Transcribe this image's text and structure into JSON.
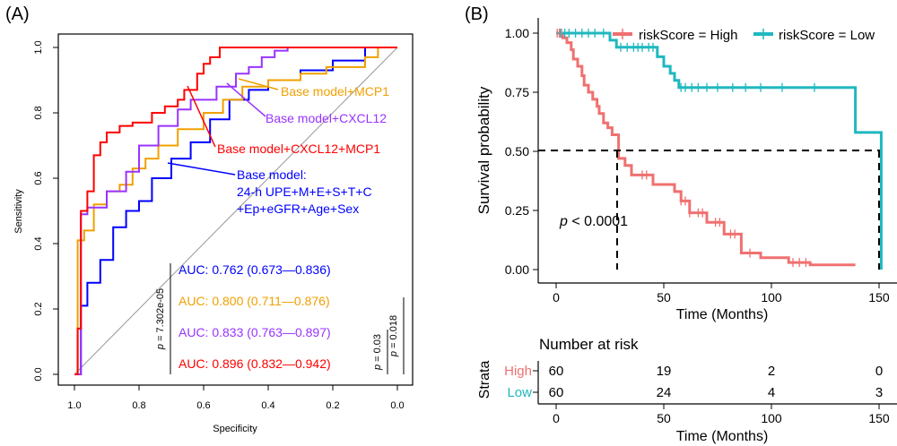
{
  "panel_a": {
    "label": "(A)",
    "ylabel": "Sensitivity",
    "xlabel": "Specificity",
    "x_ticks": [
      "1.0",
      "0.8",
      "0.6",
      "0.4",
      "0.2",
      "0.0"
    ],
    "y_ticks": [
      "0.0",
      "0.2",
      "0.4",
      "0.6",
      "0.8",
      "1.0"
    ],
    "label_mcp1": "Base model+MCP1",
    "label_cxcl12": "Base model+CXCL12",
    "label_both": "Base model+CXCL12+MCP1",
    "label_base_1": "Base model:",
    "label_base_2": "24-h UPE+M+E+S+T+C",
    "label_base_3": "+Ep+eGFR+Age+Sex",
    "auc_base": "AUC: 0.762 (0.673—0.836)",
    "auc_mcp1": "AUC: 0.800 (0.711—0.876)",
    "auc_cxcl12": "AUC: 0.833 (0.763—0.897)",
    "auc_both": "AUC: 0.896 (0.832—0.942)",
    "p_main_sym": "p",
    "p_main_val": " = 7.302e-05",
    "p_a_sym": "p",
    "p_a_val": " = 0.03",
    "p_b_sym": "p",
    "p_b_val": " = 0.018"
  },
  "panel_b": {
    "label": "(B)",
    "legend_high": "riskScore = High",
    "legend_low": "riskScore = Low",
    "ylabel": "Survival probability",
    "xlabel": "Time (Months)",
    "y_ticks": [
      "0.00",
      "0.25",
      "0.50",
      "0.75",
      "1.00"
    ],
    "x_ticks": [
      "0",
      "50",
      "100",
      "150"
    ],
    "pvalue_sym": "p",
    "pvalue_val": " < 0.0001",
    "risk_title": "Number at risk",
    "strata_label": "Strata",
    "strata_high": "High",
    "strata_low": "Low",
    "risk_high": [
      "60",
      "19",
      "2",
      "0"
    ],
    "risk_low": [
      "60",
      "24",
      "4",
      "3"
    ],
    "risk_xlabel": "Time (Months)",
    "risk_x_ticks": [
      "0",
      "50",
      "100",
      "150"
    ]
  },
  "colors": {
    "base": "#0000ff",
    "mcp1": "#f0a000",
    "cxcl12": "#9933ff",
    "both": "#ff0000",
    "high": "#f07070",
    "low": "#20b8c0"
  },
  "chart_data": [
    {
      "type": "line",
      "xlabel": "Specificity",
      "ylabel": "Sensitivity",
      "xlim": [
        1.0,
        0.0
      ],
      "ylim": [
        0.0,
        1.0
      ],
      "series": [
        {
          "name": "Base model+CXCL12+MCP1",
          "auc": 0.896,
          "x": [
            1.0,
            0.99,
            0.99,
            0.98,
            0.98,
            0.96,
            0.96,
            0.94,
            0.94,
            0.92,
            0.92,
            0.9,
            0.9,
            0.86,
            0.86,
            0.82,
            0.82,
            0.76,
            0.76,
            0.72,
            0.72,
            0.68,
            0.68,
            0.66,
            0.66,
            0.62,
            0.62,
            0.6,
            0.6,
            0.58,
            0.58,
            0.55,
            0.55,
            0.0
          ],
          "y": [
            0.0,
            0.0,
            0.14,
            0.14,
            0.5,
            0.5,
            0.56,
            0.56,
            0.67,
            0.67,
            0.71,
            0.71,
            0.74,
            0.74,
            0.76,
            0.76,
            0.77,
            0.77,
            0.8,
            0.8,
            0.82,
            0.82,
            0.84,
            0.84,
            0.87,
            0.87,
            0.92,
            0.92,
            0.95,
            0.95,
            0.97,
            0.97,
            1.0,
            1.0
          ]
        },
        {
          "name": "Base model+CXCL12",
          "auc": 0.833,
          "x": [
            1.0,
            0.98,
            0.98,
            0.96,
            0.96,
            0.9,
            0.9,
            0.84,
            0.84,
            0.8,
            0.8,
            0.74,
            0.74,
            0.68,
            0.68,
            0.64,
            0.64,
            0.56,
            0.56,
            0.5,
            0.5,
            0.46,
            0.46,
            0.42,
            0.42,
            0.38,
            0.38,
            0.34,
            0.34,
            0.0
          ],
          "y": [
            0.0,
            0.0,
            0.49,
            0.49,
            0.51,
            0.51,
            0.56,
            0.56,
            0.62,
            0.62,
            0.7,
            0.7,
            0.76,
            0.76,
            0.81,
            0.81,
            0.84,
            0.84,
            0.88,
            0.88,
            0.92,
            0.92,
            0.94,
            0.94,
            0.97,
            0.97,
            0.99,
            0.99,
            1.0,
            1.0
          ]
        },
        {
          "name": "Base model+MCP1",
          "auc": 0.8,
          "x": [
            1.0,
            0.99,
            0.99,
            0.97,
            0.97,
            0.94,
            0.94,
            0.9,
            0.9,
            0.86,
            0.86,
            0.82,
            0.82,
            0.78,
            0.78,
            0.74,
            0.74,
            0.68,
            0.68,
            0.6,
            0.6,
            0.54,
            0.54,
            0.48,
            0.48,
            0.4,
            0.4,
            0.3,
            0.3,
            0.22,
            0.22,
            0.1,
            0.1,
            0.06,
            0.06,
            0.0
          ],
          "y": [
            0.0,
            0.0,
            0.41,
            0.41,
            0.44,
            0.44,
            0.52,
            0.52,
            0.56,
            0.56,
            0.58,
            0.58,
            0.63,
            0.63,
            0.66,
            0.66,
            0.7,
            0.7,
            0.75,
            0.75,
            0.8,
            0.8,
            0.84,
            0.84,
            0.88,
            0.88,
            0.9,
            0.9,
            0.92,
            0.92,
            0.94,
            0.94,
            0.97,
            0.97,
            1.0,
            1.0
          ]
        },
        {
          "name": "Base model",
          "auc": 0.762,
          "x": [
            1.0,
            0.98,
            0.98,
            0.96,
            0.96,
            0.92,
            0.92,
            0.88,
            0.88,
            0.84,
            0.84,
            0.8,
            0.8,
            0.76,
            0.76,
            0.7,
            0.7,
            0.64,
            0.64,
            0.58,
            0.58,
            0.52,
            0.52,
            0.46,
            0.46,
            0.4,
            0.4,
            0.3,
            0.3,
            0.2,
            0.2,
            0.1,
            0.1,
            0.0
          ],
          "y": [
            0.0,
            0.0,
            0.21,
            0.21,
            0.28,
            0.28,
            0.35,
            0.35,
            0.45,
            0.45,
            0.5,
            0.5,
            0.53,
            0.53,
            0.6,
            0.6,
            0.66,
            0.66,
            0.71,
            0.71,
            0.78,
            0.78,
            0.84,
            0.84,
            0.87,
            0.87,
            0.9,
            0.9,
            0.93,
            0.93,
            0.96,
            0.96,
            1.0,
            1.0
          ]
        }
      ]
    },
    {
      "type": "line",
      "xlabel": "Time (Months)",
      "ylabel": "Survival probability",
      "xlim": [
        0,
        155
      ],
      "ylim": [
        0,
        1
      ],
      "median_survival": {
        "High": 29,
        "Low": 151
      },
      "series": [
        {
          "name": "riskScore = High",
          "x": [
            0,
            3,
            3,
            5,
            5,
            7,
            7,
            8,
            8,
            10,
            10,
            12,
            12,
            13,
            13,
            15,
            15,
            17,
            17,
            19,
            19,
            20,
            20,
            22,
            22,
            24,
            24,
            26,
            26,
            29,
            29,
            32,
            32,
            35,
            35,
            45,
            45,
            55,
            55,
            58,
            58,
            62,
            62,
            70,
            70,
            78,
            78,
            86,
            86,
            95,
            95,
            108,
            108,
            118,
            118,
            139
          ],
          "y": [
            1.0,
            1.0,
            0.98,
            0.98,
            0.96,
            0.96,
            0.93,
            0.93,
            0.89,
            0.89,
            0.86,
            0.86,
            0.82,
            0.82,
            0.78,
            0.78,
            0.75,
            0.75,
            0.72,
            0.72,
            0.69,
            0.69,
            0.66,
            0.66,
            0.62,
            0.62,
            0.6,
            0.6,
            0.57,
            0.57,
            0.47,
            0.47,
            0.44,
            0.44,
            0.4,
            0.4,
            0.36,
            0.36,
            0.33,
            0.33,
            0.29,
            0.29,
            0.24,
            0.24,
            0.2,
            0.2,
            0.15,
            0.15,
            0.07,
            0.07,
            0.05,
            0.05,
            0.03,
            0.03,
            0.02,
            0.02
          ]
        },
        {
          "name": "riskScore = Low",
          "x": [
            0,
            25,
            25,
            28,
            28,
            47,
            47,
            50,
            50,
            53,
            53,
            55,
            55,
            57,
            57,
            139,
            139,
            151,
            151
          ],
          "y": [
            1.0,
            1.0,
            0.97,
            0.97,
            0.94,
            0.94,
            0.9,
            0.9,
            0.86,
            0.86,
            0.83,
            0.83,
            0.8,
            0.8,
            0.77,
            0.77,
            0.58,
            0.58,
            0.0
          ]
        }
      ]
    }
  ]
}
